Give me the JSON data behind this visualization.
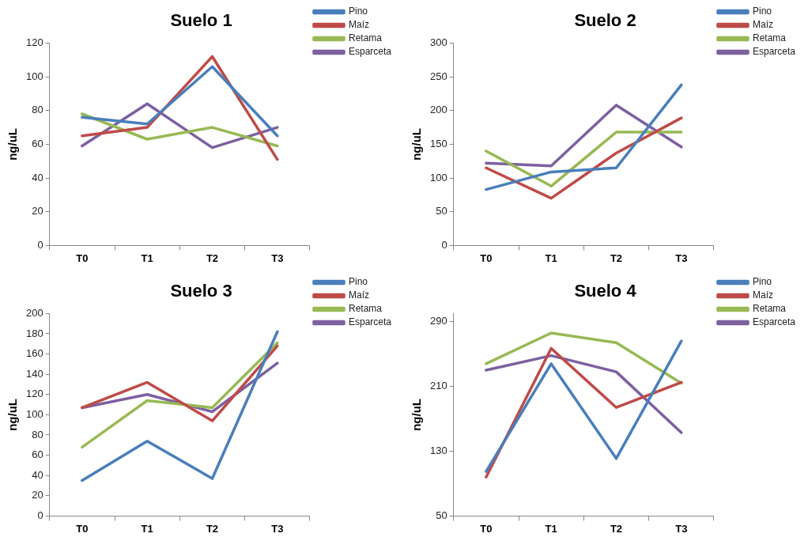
{
  "chart_data": [
    {
      "type": "line",
      "title": "Suelo 1",
      "ylabel": "ng/uL",
      "categories": [
        "T0",
        "T1",
        "T2",
        "T3"
      ],
      "ylim": [
        0,
        120
      ],
      "yticks": [
        0,
        20,
        40,
        60,
        80,
        100,
        120
      ],
      "grid": false,
      "legend": "top right",
      "marker": "none",
      "line_style": "solid",
      "series": [
        {
          "name": "Pino",
          "color": "#4a7ebb",
          "values": [
            76,
            72,
            106,
            65
          ]
        },
        {
          "name": "Maíz",
          "color": "#be4b48",
          "values": [
            65,
            70,
            112,
            51
          ]
        },
        {
          "name": "Retama",
          "color": "#98b954",
          "values": [
            78,
            63,
            70,
            59
          ]
        },
        {
          "name": "Esparceta",
          "color": "#7d60a0",
          "values": [
            59,
            84,
            58,
            70
          ]
        }
      ]
    },
    {
      "type": "line",
      "title": "Suelo 2",
      "ylabel": "ng/uL",
      "categories": [
        "T0",
        "T1",
        "T2",
        "T3"
      ],
      "ylim": [
        0,
        300
      ],
      "yticks": [
        0,
        50,
        100,
        150,
        200,
        250,
        300
      ],
      "grid": false,
      "legend": "top right",
      "marker": "none",
      "line_style": "solid",
      "series": [
        {
          "name": "Pino",
          "color": "#4a7ebb",
          "values": [
            83,
            109,
            115,
            238
          ]
        },
        {
          "name": "Maíz",
          "color": "#be4b48",
          "values": [
            115,
            70,
            137,
            189
          ]
        },
        {
          "name": "Retama",
          "color": "#98b954",
          "values": [
            140,
            88,
            168,
            168
          ]
        },
        {
          "name": "Esparceta",
          "color": "#7d60a0",
          "values": [
            122,
            118,
            208,
            146
          ]
        }
      ]
    },
    {
      "type": "line",
      "title": "Suelo 3",
      "ylabel": "ng/uL",
      "categories": [
        "T0",
        "T1",
        "T2",
        "T3"
      ],
      "ylim": [
        0,
        200
      ],
      "yticks": [
        0,
        20,
        40,
        60,
        80,
        100,
        120,
        140,
        160,
        180,
        200
      ],
      "grid": false,
      "legend": "top right",
      "marker": "none",
      "line_style": "solid",
      "series": [
        {
          "name": "Pino",
          "color": "#4a7ebb",
          "values": [
            35,
            74,
            37,
            182
          ]
        },
        {
          "name": "Maíz",
          "color": "#be4b48",
          "values": [
            107,
            132,
            94,
            168
          ]
        },
        {
          "name": "Retama",
          "color": "#98b954",
          "values": [
            68,
            114,
            107,
            171
          ]
        },
        {
          "name": "Esparceta",
          "color": "#7d60a0",
          "values": [
            107,
            120,
            103,
            151
          ]
        }
      ]
    },
    {
      "type": "line",
      "title": "Suelo 4",
      "ylabel": "ng/uL",
      "categories": [
        "T0",
        "T1",
        "T2",
        "T3"
      ],
      "ylim": [
        50,
        300
      ],
      "yticks": [
        50,
        130,
        210,
        290
      ],
      "grid": false,
      "legend": "top right",
      "marker": "none",
      "line_style": "solid",
      "series": [
        {
          "name": "Pino",
          "color": "#4a7ebb",
          "values": [
            105,
            238,
            121,
            266
          ]
        },
        {
          "name": "Maíz",
          "color": "#be4b48",
          "values": [
            98,
            257,
            184,
            215
          ]
        },
        {
          "name": "Retama",
          "color": "#98b954",
          "values": [
            238,
            276,
            264,
            214
          ]
        },
        {
          "name": "Esparceta",
          "color": "#7d60a0",
          "values": [
            230,
            248,
            228,
            153
          ]
        }
      ]
    }
  ]
}
